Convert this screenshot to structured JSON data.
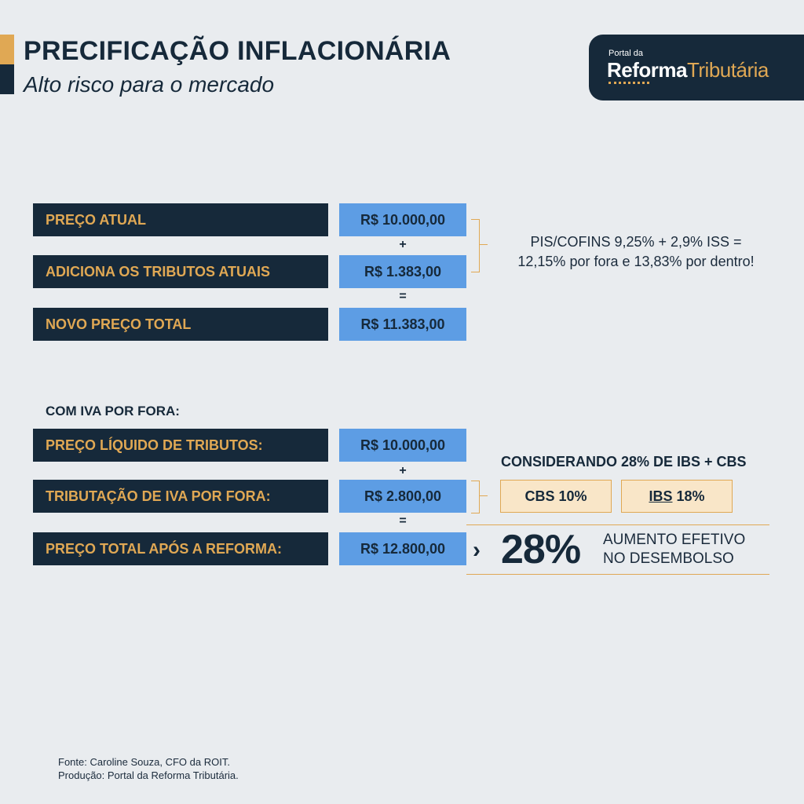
{
  "header": {
    "title": "PRECIFICAÇÃO INFLACIONÁRIA",
    "subtitle": "Alto risco para o mercado"
  },
  "logo": {
    "small": "Portal da",
    "word1": "Reforma",
    "word2": "Tributária"
  },
  "section1": {
    "rows": [
      {
        "label": "PREÇO ATUAL",
        "value": "R$ 10.000,00"
      },
      {
        "label": "ADICIONA OS TRIBUTOS ATUAIS",
        "value": "R$ 1.383,00"
      },
      {
        "label": "NOVO PREÇO TOTAL",
        "value": "R$ 11.383,00"
      }
    ],
    "op_plus": "+",
    "op_equals": "=",
    "note_line1": "PIS/COFINS 9,25% + 2,9% ISS =",
    "note_line2": "12,15% por fora e 13,83% por dentro!"
  },
  "section2": {
    "heading": "COM IVA POR FORA:",
    "rows": [
      {
        "label": "PREÇO LÍQUIDO DE TRIBUTOS:",
        "value": "R$ 10.000,00"
      },
      {
        "label": "TRIBUTAÇÃO DE IVA POR FORA:",
        "value": "R$ 2.800,00"
      },
      {
        "label": "PREÇO TOTAL APÓS A REFORMA:",
        "value": "R$ 12.800,00"
      }
    ],
    "op_plus": "+",
    "op_equals": "=",
    "considering": "CONSIDERANDO 28% DE IBS + CBS",
    "cbs": "CBS 10%",
    "ibs_name": "IBS",
    "ibs_rate": " 18%",
    "chevron": "›",
    "big_percent": "28%",
    "increase_line1": "AUMENTO EFETIVO",
    "increase_line2": "NO DESEMBOLSO"
  },
  "footer": {
    "source": "Fonte: Caroline Souza, CFO da ROIT.",
    "production": "Produção: Portal da Reforma Tributária."
  },
  "colors": {
    "navy": "#16293a",
    "gold": "#e0a854",
    "blue": "#5d9de4",
    "cream": "#f9e6c8",
    "background": "#e9ecef"
  }
}
